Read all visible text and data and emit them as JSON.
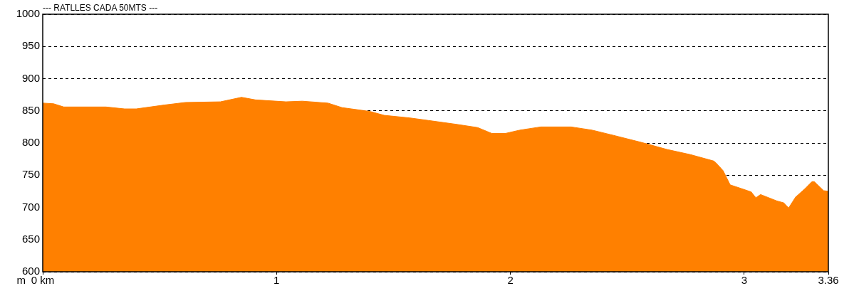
{
  "chart_data": {
    "type": "area",
    "title": "--- RATLLES CADA 50MTS ---",
    "ylabel": "m",
    "x": [
      0,
      0.046,
      0.09,
      0.27,
      0.35,
      0.4,
      0.52,
      0.61,
      0.76,
      0.85,
      0.91,
      1.04,
      1.11,
      1.22,
      1.28,
      1.4,
      1.46,
      1.57,
      1.65,
      1.77,
      1.86,
      1.92,
      1.98,
      2.04,
      2.13,
      2.26,
      2.35,
      2.44,
      2.56,
      2.67,
      2.77,
      2.87,
      2.88,
      2.91,
      2.94,
      2.99,
      3.03,
      3.05,
      3.07,
      3.14,
      3.17,
      3.19,
      3.22,
      3.26,
      3.29,
      3.3,
      3.34,
      3.36
    ],
    "series": [
      {
        "color": "#ff8000",
        "values": [
          862,
          861,
          856,
          856,
          853,
          853,
          859,
          863,
          864,
          871,
          867,
          864,
          865,
          862,
          855,
          849,
          843,
          839,
          835,
          829,
          824,
          815,
          815,
          820,
          825,
          825,
          820,
          812,
          801,
          790,
          782,
          772,
          769,
          757,
          735,
          729,
          724,
          715,
          720,
          710,
          707,
          699,
          716,
          729,
          740,
          740,
          726,
          725
        ]
      }
    ],
    "xlim": [
      0,
      3.36
    ],
    "xticks": [
      {
        "value": 0,
        "label": "0 km"
      },
      1,
      2,
      3,
      3.36
    ],
    "ylim": [
      600,
      1000
    ],
    "yticks": [
      600,
      650,
      700,
      750,
      800,
      850,
      900,
      950,
      1000
    ],
    "grid": "y",
    "legend": false
  }
}
